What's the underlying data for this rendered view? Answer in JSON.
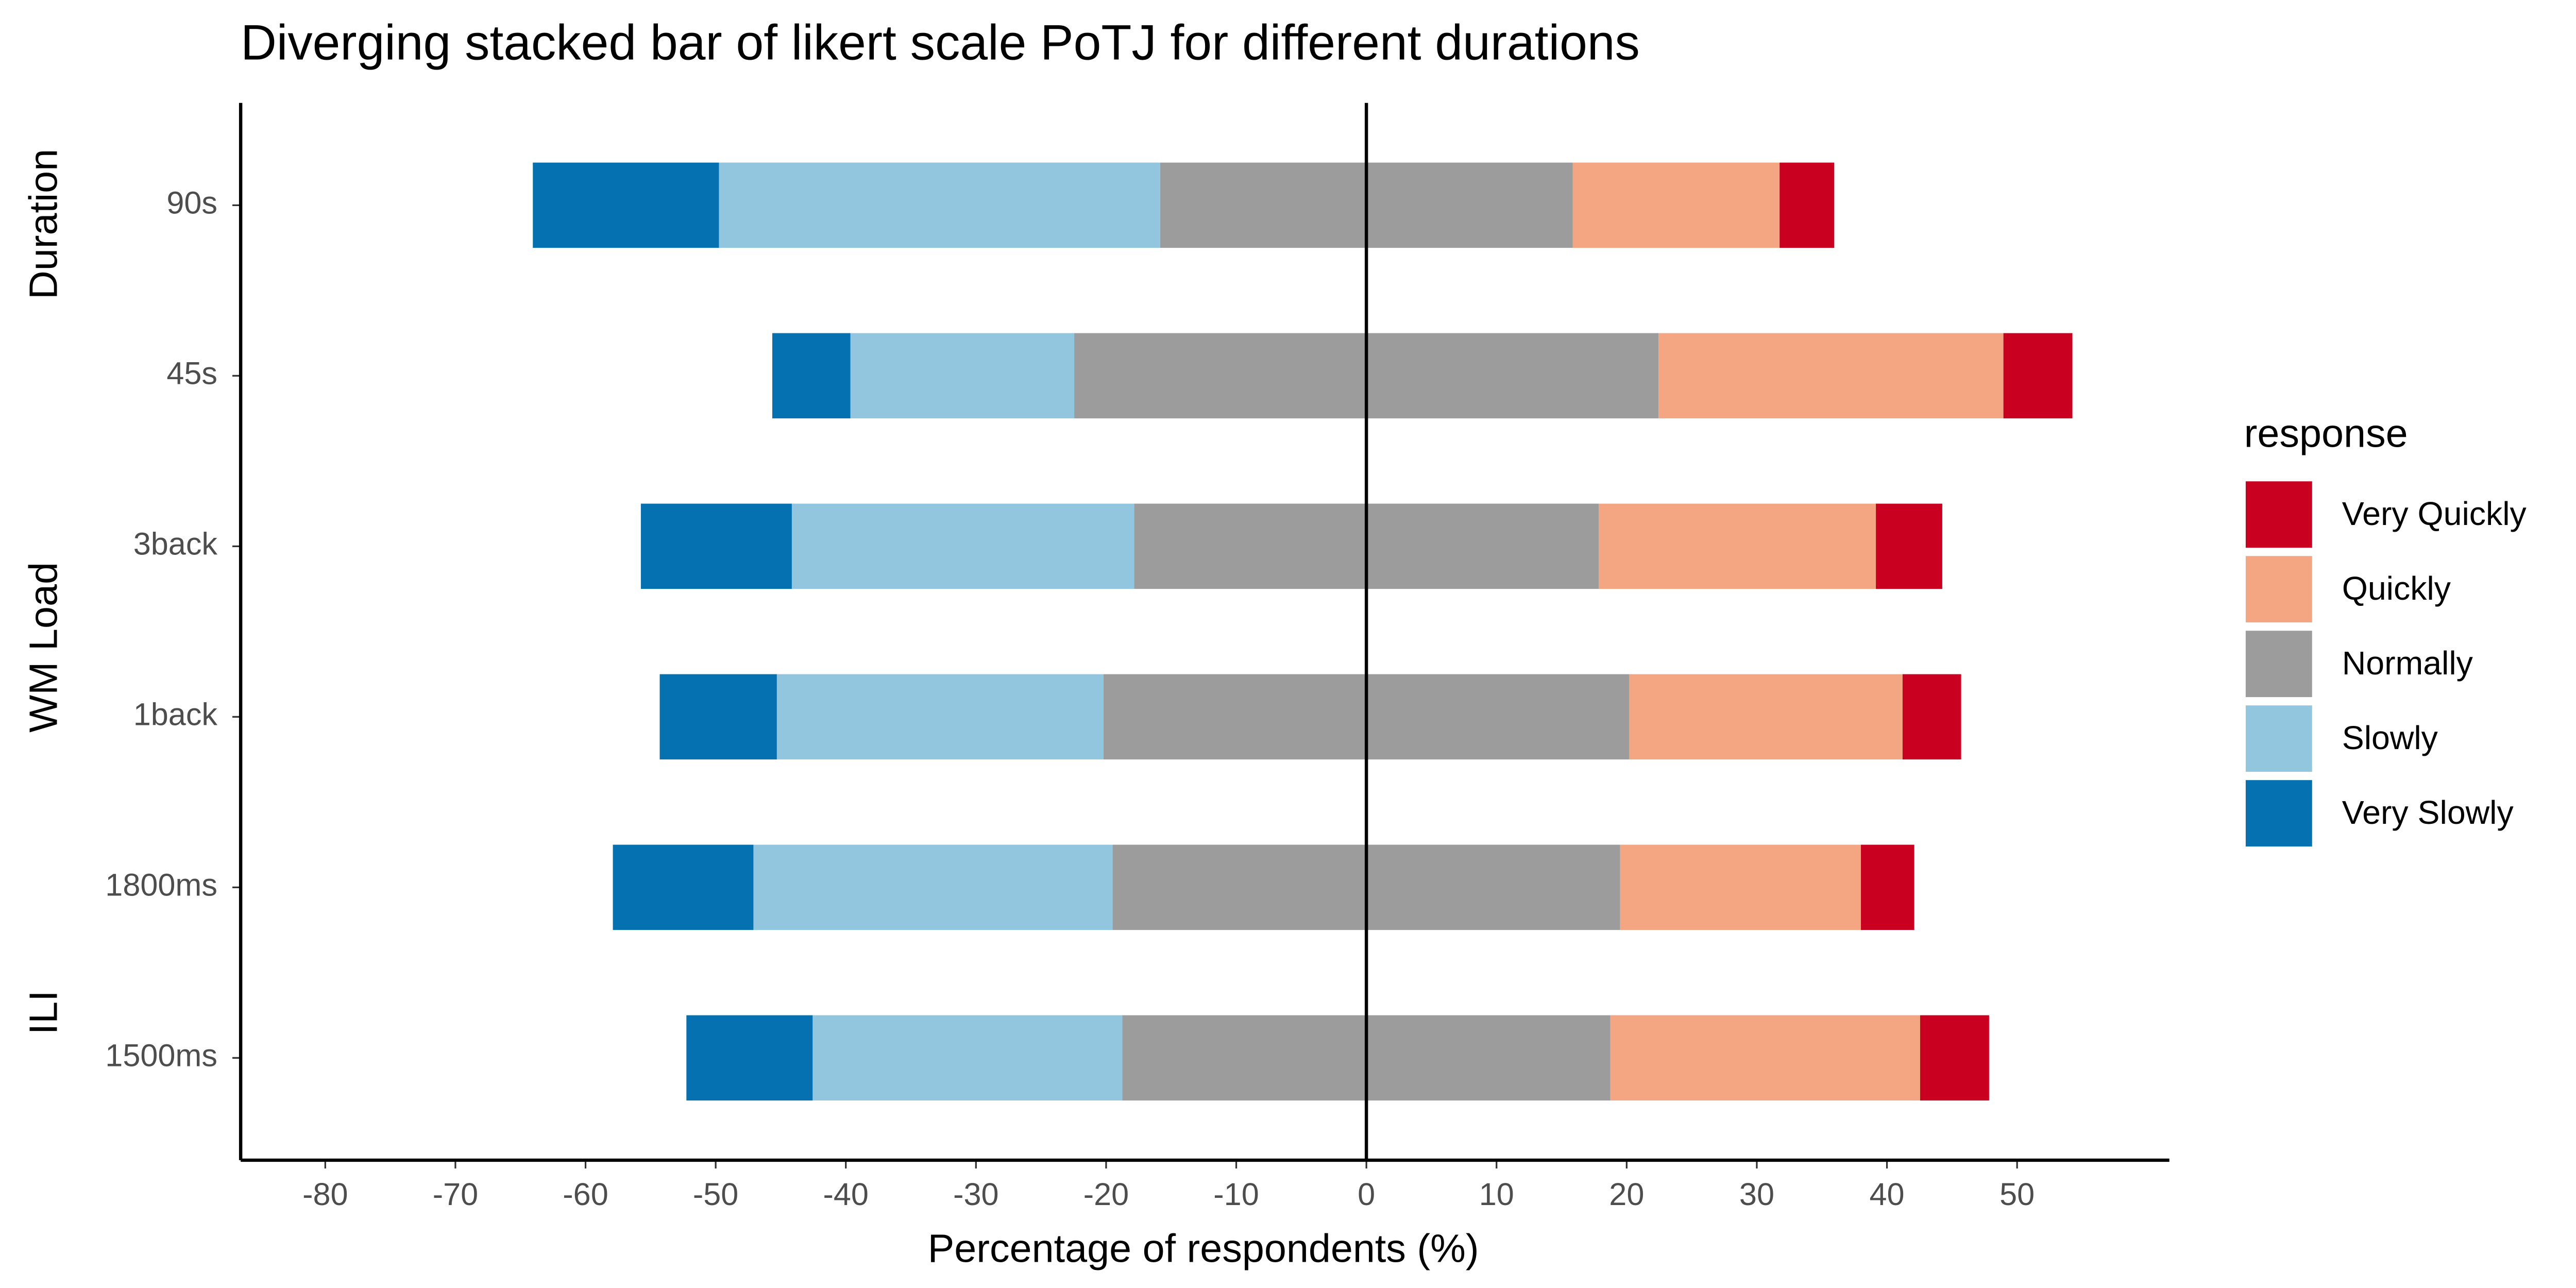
{
  "chart_data": {
    "type": "diverging_bar",
    "title": "Diverging stacked bar of likert scale PoTJ for different durations",
    "x_label": "Percentage of respondents (%)",
    "groups": [
      "Duration",
      "WM Load",
      "ILI"
    ],
    "categories": [
      "90s",
      "45s",
      "3back",
      "1back",
      "1800ms",
      "1500ms"
    ],
    "legend_title": "response",
    "series": [
      {
        "name": "Very Quickly",
        "color": "#ca0020",
        "values": [
          4.2,
          5.3,
          5.1,
          4.5,
          4.1,
          5.3
        ]
      },
      {
        "name": "Quickly",
        "color": "#f4a582",
        "values": [
          15.9,
          26.5,
          21.3,
          21.0,
          18.5,
          23.8
        ]
      },
      {
        "name": "Normally",
        "color": "#9c9c9c",
        "values": [
          31.7,
          44.9,
          35.7,
          40.4,
          39.0,
          37.5
        ]
      },
      {
        "name": "Slowly",
        "color": "#92c5de",
        "values": [
          33.9,
          17.2,
          26.3,
          25.1,
          27.6,
          23.8
        ]
      },
      {
        "name": "Very Slowly",
        "color": "#0571b0",
        "values": [
          14.3,
          6.0,
          11.6,
          9.0,
          10.8,
          9.7
        ]
      }
    ],
    "xlim": [
      -86.5,
      61.7
    ],
    "xticks": [
      -80,
      -70,
      -60,
      -50,
      -40,
      -30,
      -20,
      -10,
      0,
      10,
      20,
      30,
      40,
      50
    ],
    "grid": false
  }
}
